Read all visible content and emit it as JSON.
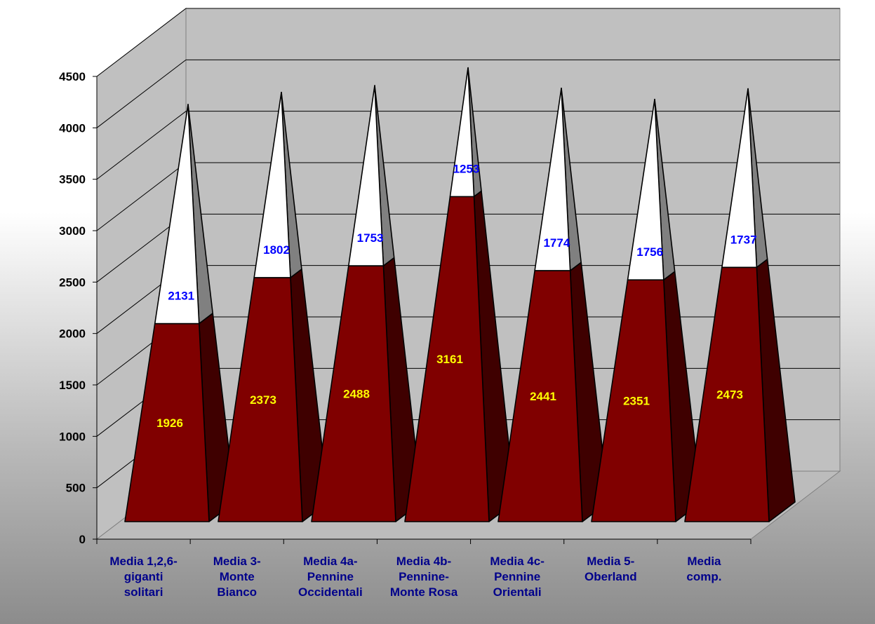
{
  "chart_data": {
    "type": "bar",
    "subtype": "3d-stacked-pyramid",
    "title": "",
    "xlabel": "",
    "ylabel": "",
    "ylim": [
      0,
      4500
    ],
    "yticks": [
      0,
      500,
      1000,
      1500,
      2000,
      2500,
      3000,
      3500,
      4000,
      4500
    ],
    "grid": true,
    "legend": "none",
    "categories": [
      [
        "Media 1,2,6-",
        "giganti",
        "solitari"
      ],
      [
        "Media 3-",
        "Monte",
        "Bianco"
      ],
      [
        "Media 4a-",
        "Pennine",
        "Occidentali"
      ],
      [
        "Media 4b-",
        "Pennine-",
        "Monte Rosa"
      ],
      [
        "Media 4c-",
        "Pennine",
        "Orientali"
      ],
      [
        "Media 5-",
        "Oberland"
      ],
      [
        "Media",
        "comp."
      ]
    ],
    "series": [
      {
        "values": [
          1926,
          2373,
          2488,
          3161,
          2441,
          2351,
          2473
        ],
        "color": "#800000",
        "label_color": "#ffff00"
      },
      {
        "values": [
          2131,
          1802,
          1753,
          1253,
          1774,
          1756,
          1737
        ],
        "color": "#ffffff",
        "label_color": "#0000ff"
      }
    ],
    "colors": {
      "back_wall": "#c0c0c0",
      "floor": "#bcbcbc",
      "gridline": "#000000",
      "axis_label": "#000000",
      "category_label": "#00008b",
      "base_side": "#3f0000",
      "top_side": "#808080"
    }
  }
}
